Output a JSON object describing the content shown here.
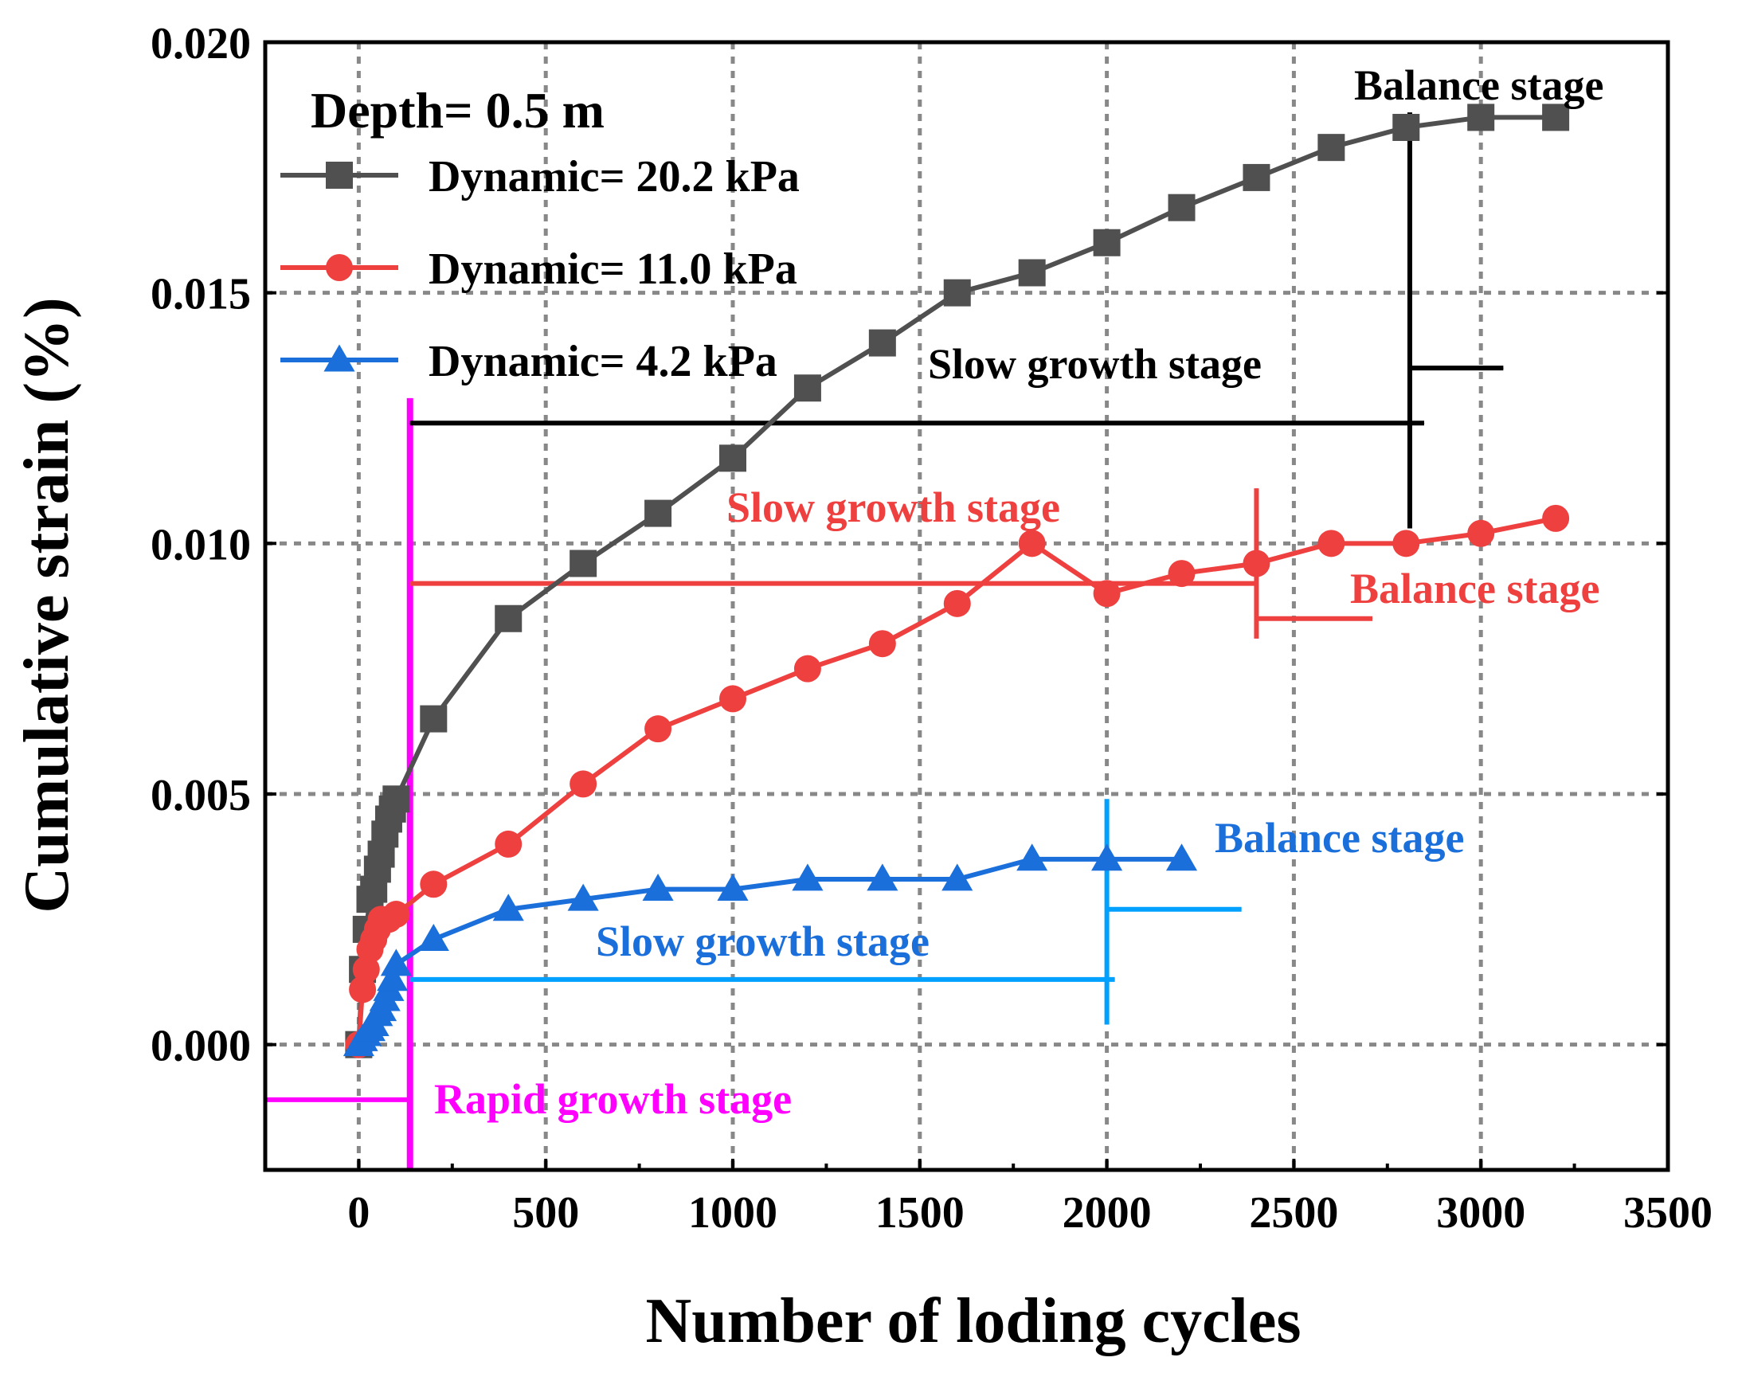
{
  "chart_data": {
    "type": "line",
    "xlabel": "Number of loding cycles",
    "ylabel": "Cumulative strain (%)",
    "xlim": [
      -250,
      3500
    ],
    "ylim": [
      -0.0025,
      0.02
    ],
    "xticks": [
      0,
      500,
      1000,
      1500,
      2000,
      2500,
      3000,
      3500
    ],
    "xtick_labels": [
      "0",
      "500",
      "1000",
      "1500",
      "2000",
      "2500",
      "3000",
      "3500"
    ],
    "yticks": [
      0,
      0.005,
      0.01,
      0.015,
      0.02
    ],
    "ytick_labels": [
      "0.000",
      "0.005",
      "0.010",
      "0.015",
      "0.020"
    ],
    "grid": true,
    "legend_title": "Depth= 0.5 m",
    "legend_position": "top-left",
    "series": [
      {
        "name": "Dynamic= 20.2 kPa",
        "color": "#505050",
        "marker": "square",
        "x": [
          0,
          10,
          20,
          30,
          40,
          50,
          60,
          70,
          80,
          90,
          100,
          200,
          400,
          600,
          800,
          1000,
          1200,
          1400,
          1600,
          1800,
          2000,
          2200,
          2400,
          2600,
          2800,
          3000,
          3200
        ],
        "y": [
          0,
          0.0015,
          0.0023,
          0.0029,
          0.0031,
          0.0035,
          0.0038,
          0.0042,
          0.0045,
          0.0047,
          0.0049,
          0.0065,
          0.0085,
          0.0096,
          0.0106,
          0.0117,
          0.0131,
          0.014,
          0.015,
          0.0154,
          0.016,
          0.0167,
          0.0173,
          0.0179,
          0.0183,
          0.0185,
          0.0185
        ]
      },
      {
        "name": "Dynamic= 11.0 kPa",
        "color": "#EF4040",
        "marker": "circle",
        "x": [
          0,
          10,
          20,
          30,
          40,
          50,
          60,
          80,
          100,
          200,
          400,
          600,
          800,
          1000,
          1200,
          1400,
          1600,
          1800,
          2000,
          2200,
          2400,
          2600,
          2800,
          3000,
          3200
        ],
        "y": [
          0,
          0.0011,
          0.0015,
          0.0019,
          0.0021,
          0.0023,
          0.0025,
          0.0025,
          0.0026,
          0.0032,
          0.004,
          0.0052,
          0.0063,
          0.0069,
          0.0075,
          0.008,
          0.0088,
          0.01,
          0.009,
          0.0094,
          0.0096,
          0.01,
          0.01,
          0.0102,
          0.0105
        ]
      },
      {
        "name": "Dynamic= 4.2 kPa",
        "color": "#1A6FDB",
        "marker": "triangle",
        "x": [
          0,
          10,
          20,
          30,
          40,
          50,
          60,
          70,
          80,
          90,
          100,
          200,
          400,
          600,
          800,
          1000,
          1200,
          1400,
          1600,
          1800,
          2000,
          2200
        ],
        "y": [
          0,
          0.0001,
          0.0002,
          0.0003,
          0.0004,
          0.0006,
          0.0007,
          0.0009,
          0.0011,
          0.0013,
          0.0016,
          0.0021,
          0.0027,
          0.0029,
          0.0031,
          0.0031,
          0.0033,
          0.0033,
          0.0033,
          0.0037,
          0.0037,
          0.0037
        ]
      }
    ],
    "annotations": {
      "rapid": {
        "text": "Rapid growth stage",
        "color": "#FF00FF",
        "boundary_x": 137,
        "arrow_y": -0.0011
      },
      "black_slow": {
        "text": "Slow growth stage",
        "color": "#000000",
        "arrow_y": 0.0124,
        "boundary_x": 2810
      },
      "black_balance": {
        "text": "Balance stage",
        "color": "#000000",
        "arrow_y": 0.0135
      },
      "red_slow": {
        "text": "Slow growth stage",
        "color": "#EF4040",
        "arrow_y": 0.0092,
        "boundary_x": 2400
      },
      "red_balance": {
        "text": "Balance stage",
        "color": "#EF4040",
        "arrow_y": 0.0085
      },
      "blue_slow": {
        "text": "Slow growth stage",
        "color": "#1A6FDB",
        "arrow_y": 0.0013,
        "boundary_x": 2000
      },
      "blue_balance": {
        "text": "Balance stage",
        "color": "#1A6FDB",
        "arrow_y": 0.0027
      },
      "blue_arrow_color": "#00A0FF"
    }
  }
}
